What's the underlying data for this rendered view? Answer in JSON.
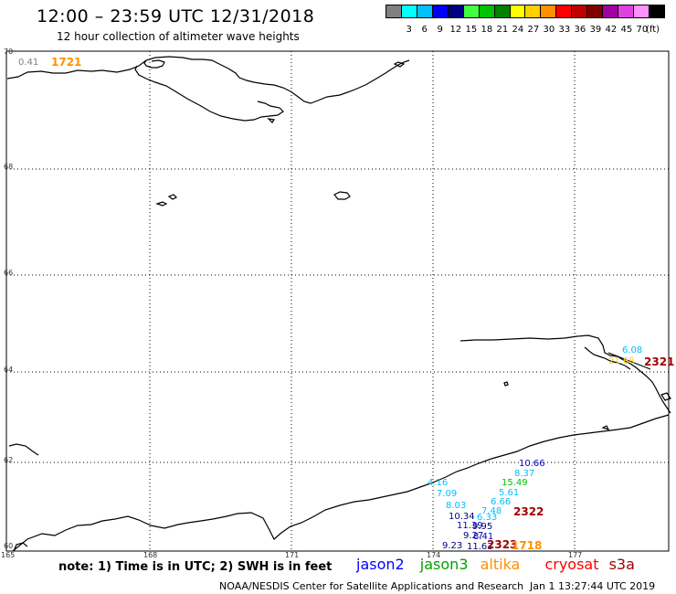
{
  "header": {
    "title": "12:00 – 23:59 UTC 12/31/2018",
    "subtitle": "12 hour collection of altimeter wave heights"
  },
  "legend": {
    "unit": "(ft)",
    "bins": [
      {
        "color": "#808080",
        "label": ""
      },
      {
        "color": "#00ffff",
        "label": "3"
      },
      {
        "color": "#00c0ff",
        "label": "6"
      },
      {
        "color": "#0000ff",
        "label": "9"
      },
      {
        "color": "#000080",
        "label": "12"
      },
      {
        "color": "#40ff40",
        "label": "15"
      },
      {
        "color": "#00c000",
        "label": "18"
      },
      {
        "color": "#008000",
        "label": "21"
      },
      {
        "color": "#ffff00",
        "label": "24"
      },
      {
        "color": "#ffd000",
        "label": "27"
      },
      {
        "color": "#ff9000",
        "label": "30"
      },
      {
        "color": "#ff0000",
        "label": "33"
      },
      {
        "color": "#c00000",
        "label": "36"
      },
      {
        "color": "#800000",
        "label": "39"
      },
      {
        "color": "#a000a0",
        "label": "42"
      },
      {
        "color": "#e040e0",
        "label": "45"
      },
      {
        "color": "#ff90ff",
        "label": "70"
      },
      {
        "color": "#000000",
        "label": ""
      }
    ]
  },
  "axes": {
    "latitudes": [
      "70",
      "68",
      "66",
      "64",
      "62",
      "60"
    ],
    "longitudes": [
      "165",
      "168",
      "171",
      "174",
      "177"
    ]
  },
  "annotations": {
    "corner_value": "0.41",
    "corner_track": "1721",
    "east_value_1": "6.08",
    "east_value_2": "21.68",
    "east_track": "2321"
  },
  "points": [
    {
      "text": "10.66",
      "color": "#0000c0"
    },
    {
      "text": "8.37",
      "color": "#00c0ff"
    },
    {
      "text": "15.49",
      "color": "#00c000"
    },
    {
      "text": "4.16",
      "color": "#00c0ff"
    },
    {
      "text": "5.61",
      "color": "#00c0ff"
    },
    {
      "text": "7.09",
      "color": "#00c0ff"
    },
    {
      "text": "6.66",
      "color": "#00c0ff"
    },
    {
      "text": "8.03",
      "color": "#00c0ff"
    },
    {
      "text": "7.48",
      "color": "#00c0ff"
    },
    {
      "text": "10.34",
      "color": "#000080"
    },
    {
      "text": "6.33",
      "color": "#00c0ff"
    },
    {
      "text": "11.39",
      "color": "#0000c0"
    },
    {
      "text": "9.95",
      "color": "#000080"
    },
    {
      "text": "9.27",
      "color": "#000080"
    },
    {
      "text": "8.41",
      "color": "#0000c0"
    },
    {
      "text": "9.23",
      "color": "#000080"
    },
    {
      "text": "11.63",
      "color": "#000080"
    }
  ],
  "tracks": [
    {
      "text": "2322",
      "color": "#a00000"
    },
    {
      "text": "2323",
      "color": "#a00000"
    },
    {
      "text": "1718",
      "color": "#ff9000"
    }
  ],
  "footer": {
    "note": "note:  1) Time is in UTC;  2) SWH is in feet",
    "satellites": [
      {
        "name": "jason2",
        "color": "#0000ff"
      },
      {
        "name": "jason3",
        "color": "#00a000"
      },
      {
        "name": "altika",
        "color": "#ff9000"
      },
      {
        "name": "cryosat",
        "color": "#ff0000"
      },
      {
        "name": "s3a",
        "color": "#a00000"
      }
    ],
    "credit": "NOAA/NESDIS Center for Satellite Applications and Research",
    "timestamp": "Jan  1 13:27:44 UTC 2019"
  }
}
